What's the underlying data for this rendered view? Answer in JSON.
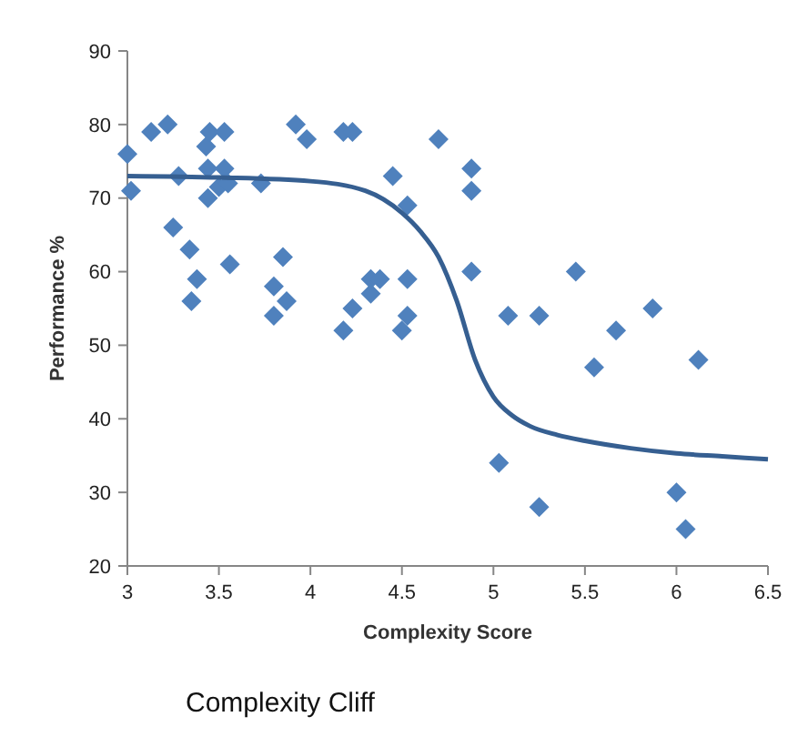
{
  "chart_data": {
    "type": "scatter",
    "title": "Complexity Cliff",
    "xlabel": "Complexity Score",
    "ylabel": "Performance %",
    "xlim": [
      3,
      6.5
    ],
    "xticks": [
      3,
      3.5,
      4,
      4.5,
      5,
      5.5,
      6,
      6.5
    ],
    "ylim": [
      20,
      90
    ],
    "yticks": [
      20,
      30,
      40,
      50,
      60,
      70,
      80,
      90
    ],
    "grid": false,
    "marker": "diamond",
    "series": [
      {
        "color": "#4f81bd",
        "x": [
          3.0,
          3.02,
          3.13,
          3.22,
          3.28,
          3.25,
          3.34,
          3.38,
          3.35,
          3.43,
          3.45,
          3.44,
          3.44,
          3.5,
          3.53,
          3.53,
          3.55,
          3.56,
          3.73,
          3.8,
          3.8,
          3.85,
          3.87,
          3.92,
          3.98,
          4.18,
          4.23,
          4.18,
          4.23,
          4.33,
          4.33,
          4.38,
          4.45,
          4.5,
          4.53,
          4.53,
          4.53,
          4.7,
          4.88,
          4.88,
          4.88,
          5.03,
          5.08,
          5.25,
          5.25,
          5.45,
          5.55,
          5.67,
          5.87,
          6.0,
          6.05,
          6.12
        ],
        "values": [
          76,
          71,
          79,
          80,
          73,
          66,
          63,
          59,
          56,
          77,
          79,
          74,
          70,
          71.5,
          79,
          74,
          72,
          61,
          72,
          58,
          54,
          62,
          56,
          80,
          78,
          79,
          79,
          52,
          55,
          59,
          57,
          59,
          73,
          52,
          54,
          59,
          69,
          78,
          74,
          71,
          60,
          34,
          54,
          54,
          28,
          60,
          47,
          52,
          55,
          30,
          25,
          48
        ]
      },
      {
        "type": "line",
        "color": "#365f91",
        "line_style": "solid",
        "marker": "none",
        "x": [
          3,
          3.5,
          4,
          4.3,
          4.5,
          4.6,
          4.7,
          4.8,
          4.9,
          5.0,
          5.1,
          5.2,
          5.35,
          5.5,
          5.75,
          6,
          6.25,
          6.5
        ],
        "values": [
          73,
          72.8,
          72.3,
          71,
          68,
          65.5,
          62,
          56,
          48,
          43,
          40.5,
          39,
          37.8,
          37,
          36,
          35.3,
          34.9,
          34.5
        ]
      }
    ]
  }
}
